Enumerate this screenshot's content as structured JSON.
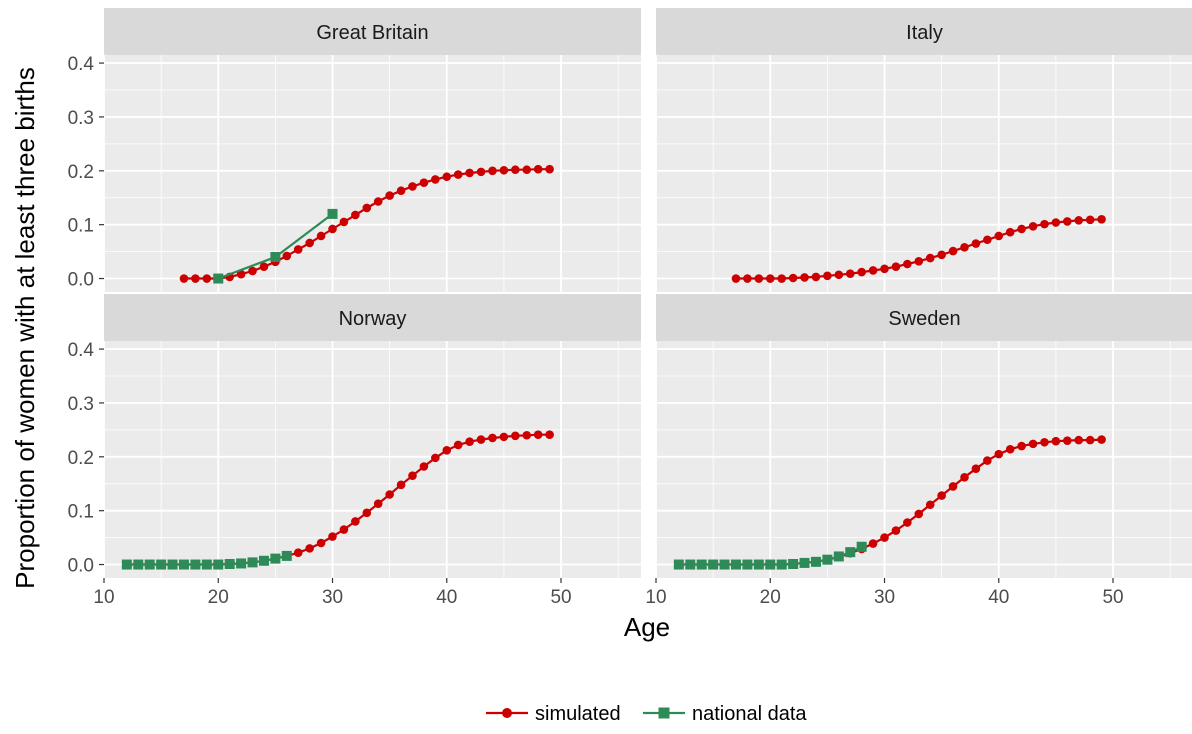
{
  "chart_data": {
    "type": "scatter",
    "layout": "facet-grid 2x2",
    "xlabel": "Age",
    "ylabel": "Proportion of women with at least three births",
    "xlim": [
      10,
      57
    ],
    "ylim": [
      -0.025,
      0.415
    ],
    "x_ticks": [
      10,
      20,
      30,
      40,
      50
    ],
    "y_ticks": [
      0.0,
      0.1,
      0.2,
      0.3,
      0.4
    ],
    "x_tick_labels": [
      "10",
      "20",
      "30",
      "40",
      "50"
    ],
    "y_tick_labels": [
      "0.0",
      "0.1",
      "0.2",
      "0.3",
      "0.4"
    ],
    "grid": true,
    "legend_position": "bottom",
    "legend": [
      {
        "name": "simulated",
        "color": "#cc0000",
        "marker": "circle"
      },
      {
        "name": "national data",
        "color": "#2e8b57",
        "marker": "square"
      }
    ],
    "panels": [
      {
        "title": "Great Britain",
        "series": [
          {
            "name": "simulated",
            "x": [
              17,
              18,
              19,
              20,
              21,
              22,
              23,
              24,
              25,
              26,
              27,
              28,
              29,
              30,
              31,
              32,
              33,
              34,
              35,
              36,
              37,
              38,
              39,
              40,
              41,
              42,
              43,
              44,
              45,
              46,
              47,
              48,
              49
            ],
            "y": [
              0.0,
              0.0,
              0.0,
              0.0,
              0.003,
              0.008,
              0.014,
              0.022,
              0.031,
              0.042,
              0.054,
              0.066,
              0.079,
              0.092,
              0.105,
              0.118,
              0.131,
              0.143,
              0.154,
              0.163,
              0.171,
              0.178,
              0.184,
              0.189,
              0.193,
              0.196,
              0.198,
              0.2,
              0.201,
              0.202,
              0.202,
              0.203,
              0.203
            ]
          },
          {
            "name": "national data",
            "x": [
              20,
              25,
              30
            ],
            "y": [
              0.0,
              0.04,
              0.12
            ]
          }
        ]
      },
      {
        "title": "Italy",
        "series": [
          {
            "name": "simulated",
            "x": [
              17,
              18,
              19,
              20,
              21,
              22,
              23,
              24,
              25,
              26,
              27,
              28,
              29,
              30,
              31,
              32,
              33,
              34,
              35,
              36,
              37,
              38,
              39,
              40,
              41,
              42,
              43,
              44,
              45,
              46,
              47,
              48,
              49
            ],
            "y": [
              0.0,
              0.0,
              0.0,
              0.0,
              0.0,
              0.001,
              0.002,
              0.003,
              0.005,
              0.007,
              0.009,
              0.012,
              0.015,
              0.018,
              0.022,
              0.027,
              0.032,
              0.038,
              0.044,
              0.051,
              0.058,
              0.065,
              0.072,
              0.079,
              0.086,
              0.092,
              0.097,
              0.101,
              0.104,
              0.106,
              0.108,
              0.109,
              0.11
            ]
          },
          {
            "name": "national data",
            "x": [],
            "y": []
          }
        ]
      },
      {
        "title": "Norway",
        "series": [
          {
            "name": "simulated",
            "x": [
              12,
              13,
              14,
              15,
              16,
              17,
              18,
              19,
              20,
              21,
              22,
              23,
              24,
              25,
              26,
              27,
              28,
              29,
              30,
              31,
              32,
              33,
              34,
              35,
              36,
              37,
              38,
              39,
              40,
              41,
              42,
              43,
              44,
              45,
              46,
              47,
              48,
              49
            ],
            "y": [
              0.0,
              0.0,
              0.0,
              0.0,
              0.0,
              0.0,
              0.0,
              0.0,
              0.0,
              0.001,
              0.002,
              0.004,
              0.007,
              0.011,
              0.016,
              0.022,
              0.03,
              0.04,
              0.052,
              0.065,
              0.08,
              0.096,
              0.113,
              0.13,
              0.148,
              0.165,
              0.182,
              0.198,
              0.212,
              0.222,
              0.228,
              0.232,
              0.235,
              0.237,
              0.239,
              0.24,
              0.241,
              0.241
            ]
          },
          {
            "name": "national data",
            "x": [
              12,
              13,
              14,
              15,
              16,
              17,
              18,
              19,
              20,
              21,
              22,
              23,
              24,
              25,
              26
            ],
            "y": [
              0.0,
              0.0,
              0.0,
              0.0,
              0.0,
              0.0,
              0.0,
              0.0,
              0.0,
              0.001,
              0.002,
              0.004,
              0.007,
              0.011,
              0.016
            ]
          }
        ]
      },
      {
        "title": "Sweden",
        "series": [
          {
            "name": "simulated",
            "x": [
              12,
              13,
              14,
              15,
              16,
              17,
              18,
              19,
              20,
              21,
              22,
              23,
              24,
              25,
              26,
              27,
              28,
              29,
              30,
              31,
              32,
              33,
              34,
              35,
              36,
              37,
              38,
              39,
              40,
              41,
              42,
              43,
              44,
              45,
              46,
              47,
              48,
              49
            ],
            "y": [
              0.0,
              0.0,
              0.0,
              0.0,
              0.0,
              0.0,
              0.0,
              0.0,
              0.0,
              0.0,
              0.001,
              0.003,
              0.005,
              0.009,
              0.014,
              0.021,
              0.029,
              0.039,
              0.05,
              0.063,
              0.078,
              0.094,
              0.111,
              0.128,
              0.145,
              0.162,
              0.178,
              0.193,
              0.205,
              0.214,
              0.22,
              0.224,
              0.227,
              0.229,
              0.23,
              0.231,
              0.231,
              0.232
            ]
          },
          {
            "name": "national data",
            "x": [
              12,
              13,
              14,
              15,
              16,
              17,
              18,
              19,
              20,
              21,
              22,
              23,
              24,
              25,
              26,
              27,
              28
            ],
            "y": [
              0.0,
              0.0,
              0.0,
              0.0,
              0.0,
              0.0,
              0.0,
              0.0,
              0.0,
              0.0,
              0.001,
              0.003,
              0.005,
              0.009,
              0.015,
              0.023,
              0.033
            ]
          }
        ]
      }
    ]
  }
}
